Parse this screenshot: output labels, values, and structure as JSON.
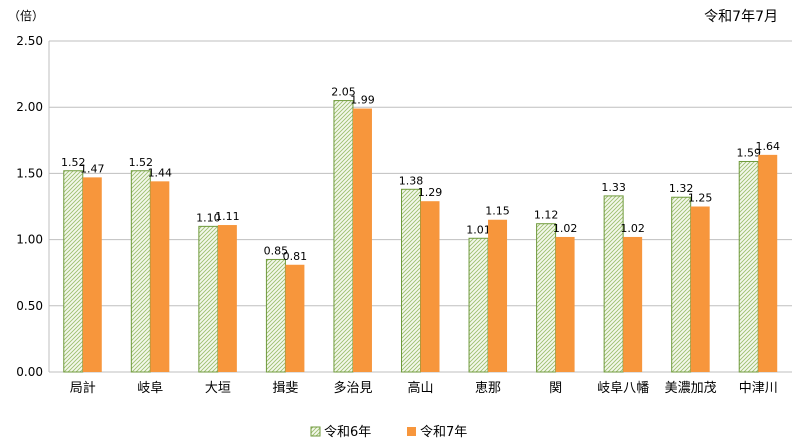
{
  "chart_data": {
    "type": "bar",
    "unit_label": "（倍）",
    "date_label": "令和7年7月",
    "categories": [
      "局計",
      "岐阜",
      "大垣",
      "揖斐",
      "多治見",
      "高山",
      "恵那",
      "関",
      "岐阜八幡",
      "美濃加茂",
      "中津川"
    ],
    "series": [
      {
        "name": "令和6年",
        "values": [
          1.52,
          1.52,
          1.1,
          0.85,
          2.05,
          1.38,
          1.01,
          1.12,
          1.33,
          1.32,
          1.59
        ],
        "color": "#8ab05a",
        "pattern": "hatched"
      },
      {
        "name": "令和7年",
        "values": [
          1.47,
          1.44,
          1.11,
          0.81,
          1.99,
          1.29,
          1.15,
          1.02,
          1.02,
          1.25,
          1.64
        ],
        "color": "#f7963c"
      }
    ],
    "ylim": [
      0,
      2.5
    ],
    "yticks": [
      "0.00",
      "0.50",
      "1.00",
      "1.50",
      "2.00",
      "2.50"
    ],
    "grid": true,
    "legend_position": "bottom"
  }
}
